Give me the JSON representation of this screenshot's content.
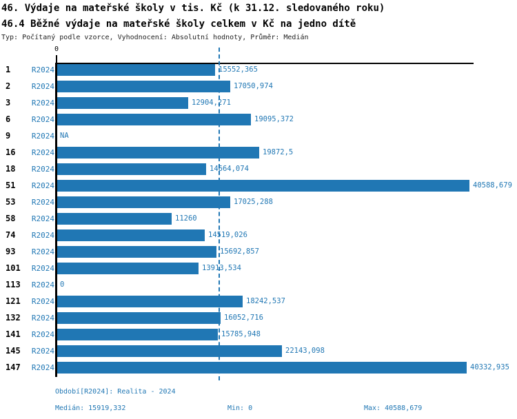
{
  "header": {
    "title": "46. Výdaje na mateřské školy v tis. Kč (k 31.12. sledovaného roku)",
    "subtitle": "46.4 Běžné výdaje na mateřské školy celkem v Kč na jedno dítě",
    "meta": "Typ: Počítaný podle vzorce, Vyhodnocení: Absolutní hodnoty, Průměr: Medián"
  },
  "chart_data": {
    "type": "bar",
    "orientation": "horizontal",
    "title": "46.4 Běžné výdaje na mateřské školy celkem v Kč na jedno dítě",
    "xlabel": "",
    "ylabel": "",
    "xlim": [
      0,
      40588.679
    ],
    "axis_zero_label": "0",
    "grid": false,
    "legend": "none",
    "categories": [
      "1",
      "2",
      "3",
      "6",
      "9",
      "16",
      "18",
      "51",
      "53",
      "58",
      "74",
      "93",
      "101",
      "113",
      "121",
      "132",
      "141",
      "145",
      "147"
    ],
    "series": [
      {
        "name": "R2024",
        "values": [
          15552.365,
          17050.974,
          12904.271,
          19095.372,
          null,
          19872.5,
          14664.074,
          40588.679,
          17025.288,
          11260,
          14519.026,
          15692.857,
          13913.534,
          0,
          18242.537,
          16052.716,
          15785.948,
          22143.098,
          40332.935
        ]
      }
    ],
    "rows": [
      {
        "id": "1",
        "period": "R2024",
        "value": 15552.365,
        "label": "15552,365"
      },
      {
        "id": "2",
        "period": "R2024",
        "value": 17050.974,
        "label": "17050,974"
      },
      {
        "id": "3",
        "period": "R2024",
        "value": 12904.271,
        "label": "12904,271"
      },
      {
        "id": "6",
        "period": "R2024",
        "value": 19095.372,
        "label": "19095,372"
      },
      {
        "id": "9",
        "period": "R2024",
        "value": null,
        "label": "NA"
      },
      {
        "id": "16",
        "period": "R2024",
        "value": 19872.5,
        "label": "19872,5"
      },
      {
        "id": "18",
        "period": "R2024",
        "value": 14664.074,
        "label": "14664,074"
      },
      {
        "id": "51",
        "period": "R2024",
        "value": 40588.679,
        "label": "40588,679"
      },
      {
        "id": "53",
        "period": "R2024",
        "value": 17025.288,
        "label": "17025,288"
      },
      {
        "id": "58",
        "period": "R2024",
        "value": 11260,
        "label": "11260"
      },
      {
        "id": "74",
        "period": "R2024",
        "value": 14519.026,
        "label": "14519,026"
      },
      {
        "id": "93",
        "period": "R2024",
        "value": 15692.857,
        "label": "15692,857"
      },
      {
        "id": "101",
        "period": "R2024",
        "value": 13913.534,
        "label": "13913,534"
      },
      {
        "id": "113",
        "period": "R2024",
        "value": 0,
        "label": "0"
      },
      {
        "id": "121",
        "period": "R2024",
        "value": 18242.537,
        "label": "18242,537"
      },
      {
        "id": "132",
        "period": "R2024",
        "value": 16052.716,
        "label": "16052,716"
      },
      {
        "id": "141",
        "period": "R2024",
        "value": 15785.948,
        "label": "15785,948"
      },
      {
        "id": "145",
        "period": "R2024",
        "value": 22143.098,
        "label": "22143,098"
      },
      {
        "id": "147",
        "period": "R2024",
        "value": 40332.935,
        "label": "40332,935"
      }
    ],
    "median": 15919.332,
    "min": 0,
    "max": 40588.679
  },
  "footer": {
    "period_info": "Období[R2024]: Realita - 2024",
    "median_label": "Medián: 15919,332",
    "min_label": "Min: 0",
    "max_label": "Max: 40588,679"
  },
  "colors": {
    "bar": "#2077b4",
    "text_blue": "#2077b4",
    "median_line": "#2077b4",
    "axis": "#000000",
    "title_text": "#000000"
  }
}
